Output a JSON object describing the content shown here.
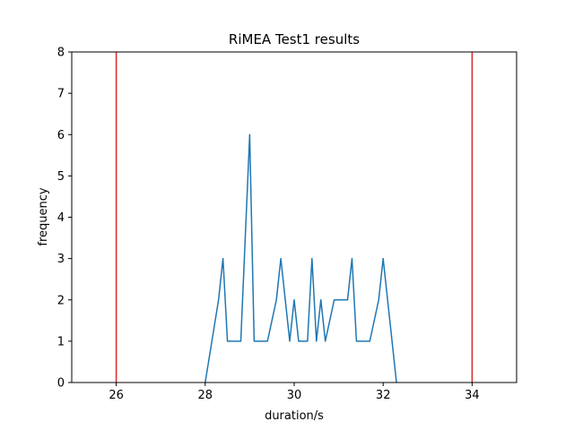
{
  "chart_data": {
    "type": "line",
    "title": "RiMEA Test1 results",
    "xlabel": "duration/s",
    "ylabel": "frequency",
    "xlim": [
      25,
      35
    ],
    "ylim": [
      0,
      8
    ],
    "xticks": [
      26,
      28,
      30,
      32,
      34
    ],
    "yticks": [
      0,
      1,
      2,
      3,
      4,
      5,
      6,
      7,
      8
    ],
    "grid": false,
    "series": [
      {
        "color": "#1f77b4",
        "x": [
          28.0,
          28.3,
          28.4,
          28.5,
          28.8,
          29.0,
          29.1,
          29.4,
          29.6,
          29.7,
          29.9,
          30.0,
          30.1,
          30.3,
          30.4,
          30.5,
          30.6,
          30.7,
          30.9,
          31.2,
          31.3,
          31.4,
          31.7,
          31.9,
          32.0,
          32.3
        ],
        "y": [
          0,
          2,
          3,
          1,
          1,
          6,
          1,
          1,
          2,
          3,
          1,
          2,
          1,
          1,
          3,
          1,
          2,
          1,
          2,
          2,
          3,
          1,
          1,
          2,
          3,
          0
        ]
      }
    ],
    "vlines": [
      {
        "x": 26,
        "color": "#d62728"
      },
      {
        "x": 34,
        "color": "#d62728"
      }
    ]
  }
}
